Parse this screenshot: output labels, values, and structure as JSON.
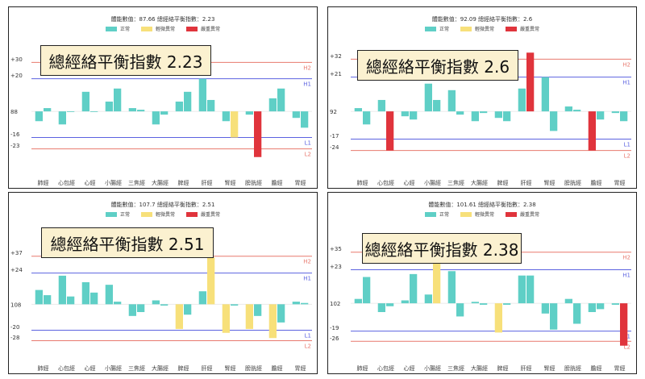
{
  "colors": {
    "normal": "#5fcfc6",
    "mild": "#f7e07a",
    "severe": "#e0343c",
    "upper": "#e8796e",
    "lower": "#e8796e",
    "h1": "#5b62e0",
    "l1": "#5b62e0"
  },
  "legend": {
    "normal": "正常",
    "mild": "輕微異常",
    "severe": "嚴重異常"
  },
  "categories": [
    "肺經",
    "心包經",
    "心經",
    "小腸經",
    "三焦經",
    "大腸經",
    "脾經",
    "肝經",
    "腎經",
    "膀胱經",
    "膽經",
    "胃經"
  ],
  "charts": [
    {
      "title": "體能數值：87.66 總經絡平衡指數：2.23",
      "callout": "總經絡平衡指數 2.23",
      "baseline_label": "88",
      "lines": [
        {
          "key": "H2",
          "label": "+30",
          "tag": "H2",
          "value": 30,
          "color": "upper"
        },
        {
          "key": "H1",
          "label": "+20",
          "tag": "H1",
          "value": 20,
          "color": "h1"
        },
        {
          "key": "L1",
          "label": "-16",
          "tag": "L1",
          "value": -16,
          "color": "l1"
        },
        {
          "key": "L2",
          "label": "-23",
          "tag": "L2",
          "value": -23,
          "color": "lower"
        }
      ],
      "ylim": [
        -38,
        48
      ],
      "bars": [
        [
          -6,
          2
        ],
        [
          -8,
          0
        ],
        [
          12,
          0
        ],
        [
          6,
          14
        ],
        [
          2,
          1
        ],
        [
          -8,
          -2
        ],
        [
          6,
          12
        ],
        [
          20,
          7
        ],
        [
          -6,
          -16
        ],
        [
          -2,
          -28
        ],
        [
          8,
          14
        ],
        [
          -4,
          -10
        ]
      ],
      "severity": [
        [
          "normal",
          "normal"
        ],
        [
          "normal",
          "normal"
        ],
        [
          "normal",
          "normal"
        ],
        [
          "normal",
          "normal"
        ],
        [
          "normal",
          "normal"
        ],
        [
          "normal",
          "normal"
        ],
        [
          "normal",
          "normal"
        ],
        [
          "normal",
          "normal"
        ],
        [
          "normal",
          "mild"
        ],
        [
          "normal",
          "severe"
        ],
        [
          "normal",
          "normal"
        ],
        [
          "normal",
          "normal"
        ]
      ]
    },
    {
      "title": "體能數值：92.09 總經絡平衡指數：2.6",
      "callout": "總經絡平衡指數 2.6",
      "baseline_label": "92",
      "lines": [
        {
          "key": "H2",
          "label": "+32",
          "tag": "H2",
          "value": 32,
          "color": "upper"
        },
        {
          "key": "H1",
          "label": "+21",
          "tag": "H1",
          "value": 21,
          "color": "h1"
        },
        {
          "key": "L1",
          "label": "-17",
          "tag": "L1",
          "value": -17,
          "color": "l1"
        },
        {
          "key": "L2",
          "label": "-24",
          "tag": "L2",
          "value": -24,
          "color": "lower"
        }
      ],
      "ylim": [
        -38,
        48
      ],
      "bars": [
        [
          2,
          -8
        ],
        [
          7,
          -24
        ],
        [
          -3,
          -5
        ],
        [
          17,
          7
        ],
        [
          13,
          -2
        ],
        [
          -6,
          -1
        ],
        [
          -4,
          -6
        ],
        [
          14,
          36
        ],
        [
          21,
          -12
        ],
        [
          3,
          1
        ],
        [
          -24,
          -5
        ],
        [
          -1,
          -6
        ]
      ],
      "severity": [
        [
          "normal",
          "normal"
        ],
        [
          "normal",
          "severe"
        ],
        [
          "normal",
          "normal"
        ],
        [
          "normal",
          "normal"
        ],
        [
          "normal",
          "normal"
        ],
        [
          "normal",
          "normal"
        ],
        [
          "normal",
          "normal"
        ],
        [
          "normal",
          "severe"
        ],
        [
          "normal",
          "normal"
        ],
        [
          "normal",
          "normal"
        ],
        [
          "severe",
          "normal"
        ],
        [
          "normal",
          "normal"
        ]
      ]
    },
    {
      "title": "體能數值：107.7 總經絡平衡指數：2.51",
      "callout": "總經絡平衡指數 2.51",
      "baseline_label": "108",
      "lines": [
        {
          "key": "H2",
          "label": "+37",
          "tag": "H2",
          "value": 37,
          "color": "upper"
        },
        {
          "key": "H1",
          "label": "+24",
          "tag": "H1",
          "value": 24,
          "color": "h1"
        },
        {
          "key": "L1",
          "label": "-20",
          "tag": "L1",
          "value": -20,
          "color": "l1"
        },
        {
          "key": "L2",
          "label": "-28",
          "tag": "L2",
          "value": -28,
          "color": "lower"
        }
      ],
      "ylim": [
        -42,
        66
      ],
      "bars": [
        [
          11,
          7
        ],
        [
          22,
          6
        ],
        [
          17,
          9
        ],
        [
          15,
          2
        ],
        [
          -9,
          -6
        ],
        [
          3,
          -1
        ],
        [
          -19,
          -8
        ],
        [
          10,
          36
        ],
        [
          -22,
          -1
        ],
        [
          -19,
          -9
        ],
        [
          -26,
          -14
        ],
        [
          2,
          1
        ]
      ],
      "severity": [
        [
          "normal",
          "normal"
        ],
        [
          "normal",
          "normal"
        ],
        [
          "normal",
          "normal"
        ],
        [
          "normal",
          "normal"
        ],
        [
          "normal",
          "normal"
        ],
        [
          "normal",
          "normal"
        ],
        [
          "mild",
          "normal"
        ],
        [
          "normal",
          "mild"
        ],
        [
          "mild",
          "normal"
        ],
        [
          "mild",
          "normal"
        ],
        [
          "mild",
          "normal"
        ],
        [
          "normal",
          "normal"
        ]
      ]
    },
    {
      "title": "體能數值：101.61 總經絡平衡指數：2.38",
      "callout": "總經絡平衡指數 2.38",
      "baseline_label": "102",
      "lines": [
        {
          "key": "H2",
          "label": "+35",
          "tag": "H2",
          "value": 35,
          "color": "upper"
        },
        {
          "key": "H1",
          "label": "+23",
          "tag": "H1",
          "value": 23,
          "color": "h1"
        },
        {
          "key": "L1",
          "label": "-19",
          "tag": "L1",
          "value": -19,
          "color": "l1"
        },
        {
          "key": "L2",
          "label": "-26",
          "tag": "L2",
          "value": -26,
          "color": "lower"
        }
      ],
      "ylim": [
        -38,
        58
      ],
      "bars": [
        [
          3,
          18
        ],
        [
          -6,
          -2
        ],
        [
          2,
          20
        ],
        [
          6,
          39
        ],
        [
          22,
          -9
        ],
        [
          1,
          -1
        ],
        [
          -20,
          -1
        ],
        [
          19,
          19
        ],
        [
          -7,
          -18
        ],
        [
          3,
          -14
        ],
        [
          -6,
          -4
        ],
        [
          -1,
          -29
        ]
      ],
      "severity": [
        [
          "normal",
          "normal"
        ],
        [
          "normal",
          "normal"
        ],
        [
          "normal",
          "normal"
        ],
        [
          "normal",
          "mild"
        ],
        [
          "normal",
          "normal"
        ],
        [
          "normal",
          "normal"
        ],
        [
          "mild",
          "normal"
        ],
        [
          "normal",
          "normal"
        ],
        [
          "normal",
          "normal"
        ],
        [
          "normal",
          "normal"
        ],
        [
          "normal",
          "normal"
        ],
        [
          "normal",
          "severe"
        ]
      ]
    }
  ]
}
